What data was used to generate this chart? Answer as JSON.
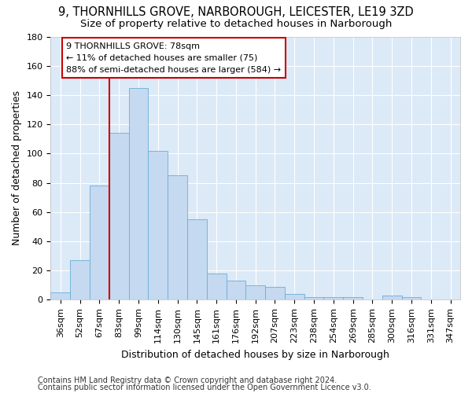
{
  "title": "9, THORNHILLS GROVE, NARBOROUGH, LEICESTER, LE19 3ZD",
  "subtitle": "Size of property relative to detached houses in Narborough",
  "xlabel": "Distribution of detached houses by size in Narborough",
  "ylabel": "Number of detached properties",
  "categories": [
    "36sqm",
    "52sqm",
    "67sqm",
    "83sqm",
    "99sqm",
    "114sqm",
    "130sqm",
    "145sqm",
    "161sqm",
    "176sqm",
    "192sqm",
    "207sqm",
    "223sqm",
    "238sqm",
    "254sqm",
    "269sqm",
    "285sqm",
    "300sqm",
    "316sqm",
    "331sqm",
    "347sqm"
  ],
  "bar_values": [
    5,
    27,
    78,
    114,
    145,
    102,
    85,
    55,
    18,
    13,
    10,
    9,
    4,
    2,
    2,
    2,
    0,
    3,
    2,
    0,
    0
  ],
  "bar_color": "#c5d9f0",
  "bar_edge_color": "#6baed6",
  "vline_color": "#cc0000",
  "vline_pos": 3.0,
  "ylim": [
    0,
    180
  ],
  "yticks": [
    0,
    20,
    40,
    60,
    80,
    100,
    120,
    140,
    160,
    180
  ],
  "annotation_line1": "9 THORNHILLS GROVE: 78sqm",
  "annotation_line2": "← 11% of detached houses are smaller (75)",
  "annotation_line3": "88% of semi-detached houses are larger (584) →",
  "annotation_box_color": "#ffffff",
  "annotation_box_edge": "#cc0000",
  "footer1": "Contains HM Land Registry data © Crown copyright and database right 2024.",
  "footer2": "Contains public sector information licensed under the Open Government Licence v3.0.",
  "fig_bg_color": "#ffffff",
  "plot_bg_color": "#dce9f7",
  "grid_color": "#ffffff",
  "title_fontsize": 10.5,
  "subtitle_fontsize": 9.5,
  "axis_label_fontsize": 9,
  "tick_fontsize": 8,
  "annotation_fontsize": 8,
  "footer_fontsize": 7
}
